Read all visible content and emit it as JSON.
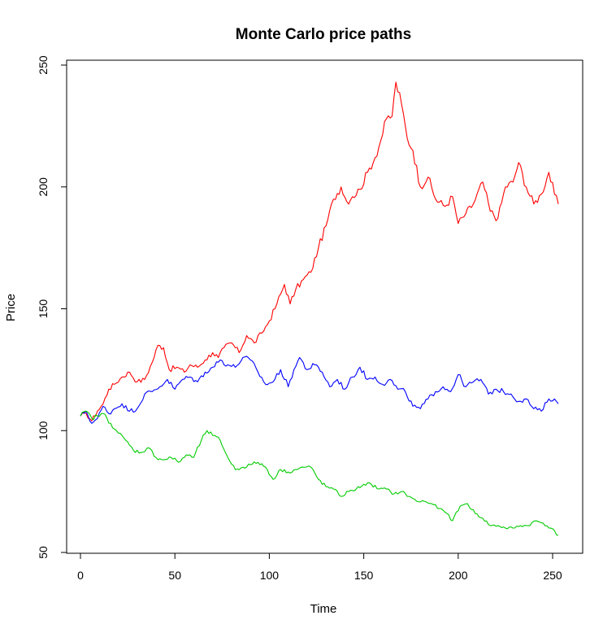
{
  "chart_data": {
    "type": "line",
    "title": "Monte Carlo price paths",
    "xlabel": "Time",
    "ylabel": "Price",
    "xlim": [
      0,
      253
    ],
    "ylim": [
      50,
      250
    ],
    "xticks": [
      0,
      50,
      100,
      150,
      200,
      250
    ],
    "yticks": [
      50,
      100,
      150,
      200,
      250
    ],
    "grid": false,
    "series": [
      {
        "color": "#ff0000",
        "points": [
          [
            0,
            106
          ],
          [
            3,
            107
          ],
          [
            6,
            104
          ],
          [
            9,
            108
          ],
          [
            12,
            111
          ],
          [
            15,
            117
          ],
          [
            18,
            119
          ],
          [
            22,
            122
          ],
          [
            26,
            124
          ],
          [
            30,
            120
          ],
          [
            34,
            121
          ],
          [
            38,
            128
          ],
          [
            41,
            135
          ],
          [
            44,
            134
          ],
          [
            47,
            125
          ],
          [
            51,
            126
          ],
          [
            55,
            124
          ],
          [
            58,
            127
          ],
          [
            62,
            126
          ],
          [
            66,
            129
          ],
          [
            70,
            132
          ],
          [
            73,
            130
          ],
          [
            76,
            134
          ],
          [
            80,
            136
          ],
          [
            84,
            132
          ],
          [
            88,
            139
          ],
          [
            92,
            136
          ],
          [
            96,
            140
          ],
          [
            100,
            145
          ],
          [
            104,
            152
          ],
          [
            108,
            160
          ],
          [
            111,
            152
          ],
          [
            114,
            158
          ],
          [
            118,
            162
          ],
          [
            122,
            165
          ],
          [
            126,
            175
          ],
          [
            130,
            184
          ],
          [
            134,
            195
          ],
          [
            138,
            200
          ],
          [
            141,
            194
          ],
          [
            144,
            196
          ],
          [
            148,
            199
          ],
          [
            152,
            206
          ],
          [
            156,
            212
          ],
          [
            159,
            219
          ],
          [
            162,
            228
          ],
          [
            165,
            229
          ],
          [
            167,
            243
          ],
          [
            170,
            234
          ],
          [
            173,
            220
          ],
          [
            176,
            215
          ],
          [
            180,
            200
          ],
          [
            184,
            204
          ],
          [
            188,
            195
          ],
          [
            193,
            192
          ],
          [
            197,
            196
          ],
          [
            200,
            185
          ],
          [
            204,
            189
          ],
          [
            208,
            193
          ],
          [
            213,
            202
          ],
          [
            217,
            190
          ],
          [
            221,
            187
          ],
          [
            225,
            200
          ],
          [
            229,
            202
          ],
          [
            232,
            210
          ],
          [
            236,
            200
          ],
          [
            240,
            193
          ],
          [
            244,
            197
          ],
          [
            248,
            206
          ],
          [
            251,
            197
          ],
          [
            253,
            193
          ]
        ]
      },
      {
        "color": "#0000ff",
        "points": [
          [
            0,
            106
          ],
          [
            3,
            108
          ],
          [
            6,
            103
          ],
          [
            9,
            105
          ],
          [
            12,
            110
          ],
          [
            15,
            107
          ],
          [
            18,
            109
          ],
          [
            22,
            111
          ],
          [
            26,
            108
          ],
          [
            30,
            109
          ],
          [
            34,
            115
          ],
          [
            38,
            116
          ],
          [
            42,
            118
          ],
          [
            46,
            121
          ],
          [
            50,
            117
          ],
          [
            54,
            121
          ],
          [
            58,
            122
          ],
          [
            62,
            120
          ],
          [
            66,
            124
          ],
          [
            70,
            126
          ],
          [
            74,
            129
          ],
          [
            78,
            127
          ],
          [
            82,
            126
          ],
          [
            86,
            130
          ],
          [
            90,
            129
          ],
          [
            94,
            124
          ],
          [
            98,
            119
          ],
          [
            102,
            120
          ],
          [
            106,
            125
          ],
          [
            110,
            118
          ],
          [
            113,
            125
          ],
          [
            116,
            130
          ],
          [
            120,
            125
          ],
          [
            124,
            127
          ],
          [
            128,
            124
          ],
          [
            132,
            118
          ],
          [
            136,
            121
          ],
          [
            140,
            117
          ],
          [
            144,
            122
          ],
          [
            148,
            126
          ],
          [
            152,
            121
          ],
          [
            156,
            122
          ],
          [
            160,
            119
          ],
          [
            164,
            121
          ],
          [
            168,
            117
          ],
          [
            172,
            116
          ],
          [
            176,
            110
          ],
          [
            180,
            109
          ],
          [
            184,
            113
          ],
          [
            188,
            116
          ],
          [
            192,
            118
          ],
          [
            196,
            116
          ],
          [
            200,
            123
          ],
          [
            204,
            118
          ],
          [
            208,
            120
          ],
          [
            212,
            121
          ],
          [
            216,
            115
          ],
          [
            220,
            117
          ],
          [
            224,
            116
          ],
          [
            228,
            115
          ],
          [
            232,
            112
          ],
          [
            236,
            113
          ],
          [
            240,
            109
          ],
          [
            244,
            108
          ],
          [
            248,
            113
          ],
          [
            251,
            113
          ],
          [
            253,
            111
          ]
        ]
      },
      {
        "color": "#00cc00",
        "points": [
          [
            0,
            106
          ],
          [
            3,
            108
          ],
          [
            6,
            105
          ],
          [
            9,
            106
          ],
          [
            12,
            107
          ],
          [
            16,
            103
          ],
          [
            20,
            99
          ],
          [
            24,
            96
          ],
          [
            28,
            92
          ],
          [
            32,
            91
          ],
          [
            36,
            93
          ],
          [
            40,
            89
          ],
          [
            44,
            88
          ],
          [
            48,
            89
          ],
          [
            52,
            87
          ],
          [
            56,
            90
          ],
          [
            60,
            89
          ],
          [
            64,
            96
          ],
          [
            67,
            100
          ],
          [
            70,
            98
          ],
          [
            74,
            96
          ],
          [
            78,
            89
          ],
          [
            82,
            84
          ],
          [
            86,
            85
          ],
          [
            90,
            86
          ],
          [
            94,
            87
          ],
          [
            98,
            85
          ],
          [
            102,
            80
          ],
          [
            106,
            84
          ],
          [
            110,
            83
          ],
          [
            114,
            84
          ],
          [
            118,
            85
          ],
          [
            122,
            85
          ],
          [
            126,
            80
          ],
          [
            130,
            77
          ],
          [
            134,
            76
          ],
          [
            138,
            73
          ],
          [
            142,
            75
          ],
          [
            146,
            76
          ],
          [
            150,
            78
          ],
          [
            154,
            78
          ],
          [
            158,
            76
          ],
          [
            162,
            76
          ],
          [
            166,
            74
          ],
          [
            170,
            75
          ],
          [
            174,
            73
          ],
          [
            178,
            71
          ],
          [
            182,
            71
          ],
          [
            186,
            70
          ],
          [
            190,
            68
          ],
          [
            194,
            66
          ],
          [
            197,
            63
          ],
          [
            201,
            69
          ],
          [
            205,
            70
          ],
          [
            209,
            66
          ],
          [
            213,
            64
          ],
          [
            217,
            61
          ],
          [
            221,
            61
          ],
          [
            225,
            60
          ],
          [
            229,
            60
          ],
          [
            233,
            61
          ],
          [
            237,
            61
          ],
          [
            241,
            63
          ],
          [
            245,
            62
          ],
          [
            249,
            60
          ],
          [
            253,
            57
          ]
        ]
      }
    ]
  }
}
